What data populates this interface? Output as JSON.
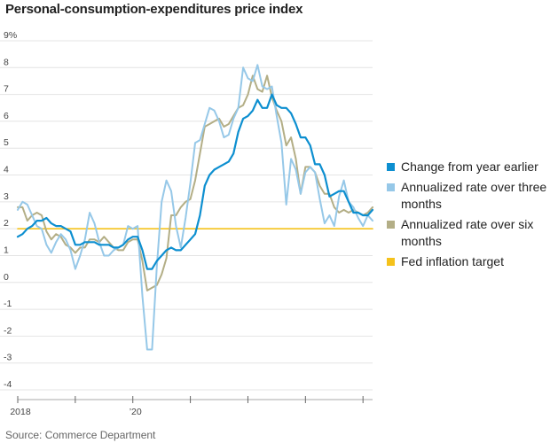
{
  "chart_data": {
    "type": "line",
    "title": "Personal-consumption-expenditures price index",
    "source": "Source: Commerce Department",
    "y_unit_suffix": "%",
    "ylim": [
      -4,
      9
    ],
    "y_ticks": [
      9,
      8,
      7,
      6,
      5,
      4,
      3,
      2,
      1,
      0,
      -1,
      -2,
      -3,
      -4
    ],
    "x_ticks": [
      {
        "label": "2018",
        "month": 0
      },
      {
        "label": "",
        "month": 12
      },
      {
        "label": "’20",
        "month": 24
      },
      {
        "label": "",
        "month": 36
      },
      {
        "label": "",
        "month": 48
      },
      {
        "label": "",
        "month": 60
      },
      {
        "label": "",
        "month": 72
      }
    ],
    "x_start": "2018-01",
    "x_end": "2024-03",
    "grid": "horizontal",
    "legend_position": "right",
    "series": [
      {
        "name": "Change from year earlier",
        "color": "#0d8fd0",
        "width": 2.2,
        "x": [
          "2018-01",
          "2018-02",
          "2018-03",
          "2018-04",
          "2018-05",
          "2018-06",
          "2018-07",
          "2018-08",
          "2018-09",
          "2018-10",
          "2018-11",
          "2018-12",
          "2019-01",
          "2019-02",
          "2019-03",
          "2019-04",
          "2019-05",
          "2019-06",
          "2019-07",
          "2019-08",
          "2019-09",
          "2019-10",
          "2019-11",
          "2019-12",
          "2020-01",
          "2020-02",
          "2020-03",
          "2020-04",
          "2020-05",
          "2020-06",
          "2020-07",
          "2020-08",
          "2020-09",
          "2020-10",
          "2020-11",
          "2020-12",
          "2021-01",
          "2021-02",
          "2021-03",
          "2021-04",
          "2021-05",
          "2021-06",
          "2021-07",
          "2021-08",
          "2021-09",
          "2021-10",
          "2021-11",
          "2021-12",
          "2022-01",
          "2022-02",
          "2022-03",
          "2022-04",
          "2022-05",
          "2022-06",
          "2022-07",
          "2022-08",
          "2022-09",
          "2022-10",
          "2022-11",
          "2022-12",
          "2023-01",
          "2023-02",
          "2023-03",
          "2023-04",
          "2023-05",
          "2023-06",
          "2023-07",
          "2023-08",
          "2023-09",
          "2023-10",
          "2023-11",
          "2023-12",
          "2024-01",
          "2024-02",
          "2024-03"
        ],
        "values": [
          1.7,
          1.8,
          2.0,
          2.1,
          2.3,
          2.3,
          2.4,
          2.2,
          2.1,
          2.1,
          2.0,
          1.9,
          1.4,
          1.4,
          1.5,
          1.5,
          1.5,
          1.4,
          1.4,
          1.4,
          1.3,
          1.3,
          1.4,
          1.6,
          1.7,
          1.7,
          1.2,
          0.5,
          0.5,
          0.8,
          1.0,
          1.2,
          1.3,
          1.2,
          1.2,
          1.4,
          1.6,
          1.8,
          2.5,
          3.6,
          4.0,
          4.2,
          4.3,
          4.4,
          4.5,
          4.8,
          5.6,
          6.1,
          6.2,
          6.4,
          6.8,
          6.5,
          6.5,
          7.0,
          6.6,
          6.5,
          6.5,
          6.3,
          5.9,
          5.4,
          5.4,
          5.1,
          4.4,
          4.4,
          4.0,
          3.2,
          3.3,
          3.4,
          3.4,
          3.0,
          2.6,
          2.6,
          2.5,
          2.5,
          2.7
        ]
      },
      {
        "name": "Annualized rate over three months",
        "color": "#96c8e8",
        "width": 2.0,
        "x": [
          "2018-01",
          "2018-02",
          "2018-03",
          "2018-04",
          "2018-05",
          "2018-06",
          "2018-07",
          "2018-08",
          "2018-09",
          "2018-10",
          "2018-11",
          "2018-12",
          "2019-01",
          "2019-02",
          "2019-03",
          "2019-04",
          "2019-05",
          "2019-06",
          "2019-07",
          "2019-08",
          "2019-09",
          "2019-10",
          "2019-11",
          "2019-12",
          "2020-01",
          "2020-02",
          "2020-03",
          "2020-04",
          "2020-05",
          "2020-06",
          "2020-07",
          "2020-08",
          "2020-09",
          "2020-10",
          "2020-11",
          "2020-12",
          "2021-01",
          "2021-02",
          "2021-03",
          "2021-04",
          "2021-05",
          "2021-06",
          "2021-07",
          "2021-08",
          "2021-09",
          "2021-10",
          "2021-11",
          "2021-12",
          "2022-01",
          "2022-02",
          "2022-03",
          "2022-04",
          "2022-05",
          "2022-06",
          "2022-07",
          "2022-08",
          "2022-09",
          "2022-10",
          "2022-11",
          "2022-12",
          "2023-01",
          "2023-02",
          "2023-03",
          "2023-04",
          "2023-05",
          "2023-06",
          "2023-07",
          "2023-08",
          "2023-09",
          "2023-10",
          "2023-11",
          "2023-12",
          "2024-01",
          "2024-02",
          "2024-03"
        ],
        "values": [
          2.7,
          3.0,
          2.9,
          2.5,
          2.1,
          2.0,
          1.4,
          1.1,
          1.5,
          1.8,
          1.6,
          1.2,
          0.5,
          1.0,
          1.6,
          2.6,
          2.2,
          1.5,
          1.0,
          1.0,
          1.2,
          1.3,
          1.4,
          2.1,
          2.0,
          2.1,
          -0.5,
          -2.5,
          -2.5,
          0.6,
          3.0,
          3.8,
          3.4,
          2.1,
          1.3,
          2.4,
          3.7,
          5.2,
          5.3,
          5.9,
          6.5,
          6.4,
          6.0,
          5.4,
          5.5,
          6.1,
          6.5,
          8.0,
          7.6,
          7.5,
          8.1,
          7.3,
          7.2,
          7.3,
          6.2,
          5.2,
          2.9,
          4.6,
          4.2,
          3.3,
          4.1,
          4.3,
          4.1,
          3.1,
          2.2,
          2.5,
          2.1,
          3.2,
          3.8,
          3.0,
          2.8,
          2.4,
          2.1,
          2.5,
          2.3
        ]
      },
      {
        "name": "Annualized rate over six months",
        "color": "#b3ae86",
        "width": 2.0,
        "x": [
          "2018-01",
          "2018-02",
          "2018-03",
          "2018-04",
          "2018-05",
          "2018-06",
          "2018-07",
          "2018-08",
          "2018-09",
          "2018-10",
          "2018-11",
          "2018-12",
          "2019-01",
          "2019-02",
          "2019-03",
          "2019-04",
          "2019-05",
          "2019-06",
          "2019-07",
          "2019-08",
          "2019-09",
          "2019-10",
          "2019-11",
          "2019-12",
          "2020-01",
          "2020-02",
          "2020-03",
          "2020-04",
          "2020-05",
          "2020-06",
          "2020-07",
          "2020-08",
          "2020-09",
          "2020-10",
          "2020-11",
          "2020-12",
          "2021-01",
          "2021-02",
          "2021-03",
          "2021-04",
          "2021-05",
          "2021-06",
          "2021-07",
          "2021-08",
          "2021-09",
          "2021-10",
          "2021-11",
          "2021-12",
          "2022-01",
          "2022-02",
          "2022-03",
          "2022-04",
          "2022-05",
          "2022-06",
          "2022-07",
          "2022-08",
          "2022-09",
          "2022-10",
          "2022-11",
          "2022-12",
          "2023-01",
          "2023-02",
          "2023-03",
          "2023-04",
          "2023-05",
          "2023-06",
          "2023-07",
          "2023-08",
          "2023-09",
          "2023-10",
          "2023-11",
          "2023-12",
          "2024-01",
          "2024-02",
          "2024-03"
        ],
        "values": [
          2.8,
          2.8,
          2.3,
          2.5,
          2.6,
          2.5,
          1.9,
          1.6,
          1.8,
          1.7,
          1.4,
          1.3,
          1.1,
          1.3,
          1.3,
          1.6,
          1.6,
          1.5,
          1.7,
          1.5,
          1.3,
          1.2,
          1.2,
          1.5,
          1.6,
          1.6,
          0.8,
          -0.3,
          -0.2,
          -0.1,
          0.3,
          0.9,
          2.5,
          2.5,
          2.8,
          3.0,
          3.1,
          3.8,
          4.8,
          5.8,
          5.9,
          6.0,
          6.1,
          5.8,
          5.9,
          6.2,
          6.5,
          6.6,
          7.0,
          7.7,
          7.2,
          7.1,
          7.7,
          6.9,
          6.4,
          6.0,
          5.1,
          5.4,
          4.6,
          3.3,
          4.3,
          4.3,
          4.1,
          3.6,
          3.3,
          3.3,
          2.8,
          2.6,
          2.7,
          2.6,
          2.7,
          2.6,
          2.5,
          2.6,
          2.8
        ]
      },
      {
        "name": "Fed inflation target",
        "color": "#f5c21b",
        "width": 1.6,
        "x": [
          "2018-01",
          "2024-03"
        ],
        "values": [
          2,
          2
        ]
      }
    ]
  }
}
